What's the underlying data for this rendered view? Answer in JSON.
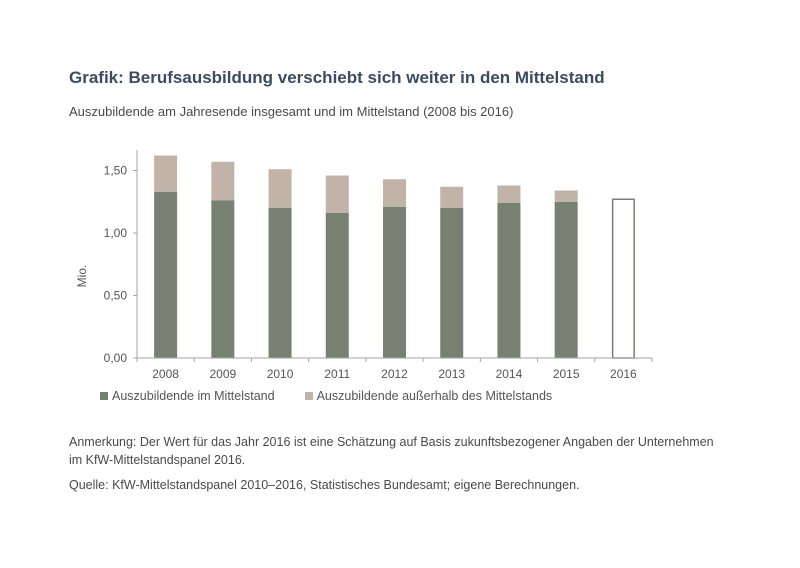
{
  "header": {
    "title": "Grafik: Berufsausbildung verschiebt sich weiter in den Mittelstand",
    "subtitle": "Auszubildende am Jahresende insgesamt und im Mittelstand (2008 bis 2016)"
  },
  "footer": {
    "note": "Anmerkung: Der Wert für das Jahr 2016 ist eine Schätzung auf Basis zukunftsbezogener Angaben der Unternehmen im KfW-Mittelstandspanel 2016.",
    "source": "Quelle: KfW-Mittelstandspanel 2010–2016, Statistisches Bundesamt; eigene Berechnungen."
  },
  "colors": {
    "mittelstand": "#768171",
    "ausserhalb": "#c1b3a8",
    "estimate_outline": "#768171",
    "axis": "#a6a6a6",
    "title": "#3b4b63"
  },
  "chart_data": {
    "type": "bar",
    "stacked": true,
    "title": "Auszubildende am Jahresende insgesamt und im Mittelstand (2008 bis 2016)",
    "xlabel": "",
    "ylabel": "Mio.",
    "ylim": [
      0,
      1.62
    ],
    "yticks": [
      0,
      0.5,
      1.0,
      1.5
    ],
    "ytick_labels": [
      "0,00",
      "0,50",
      "1,00",
      "1,50"
    ],
    "grid": false,
    "legend_position": "bottom",
    "categories": [
      "2008",
      "2009",
      "2010",
      "2011",
      "2012",
      "2013",
      "2014",
      "2015",
      "2016"
    ],
    "series": [
      {
        "name": "Auszubildende im Mittelstand",
        "values": [
          1.33,
          1.26,
          1.2,
          1.16,
          1.21,
          1.2,
          1.24,
          1.25,
          null
        ]
      },
      {
        "name": "Auszubildende außerhalb des Mittelstands",
        "values": [
          0.29,
          0.31,
          0.31,
          0.3,
          0.22,
          0.17,
          0.14,
          0.09,
          null
        ]
      }
    ],
    "estimate": {
      "category": "2016",
      "value": 1.27,
      "style": "outline",
      "series": "Auszubildende im Mittelstand"
    }
  }
}
